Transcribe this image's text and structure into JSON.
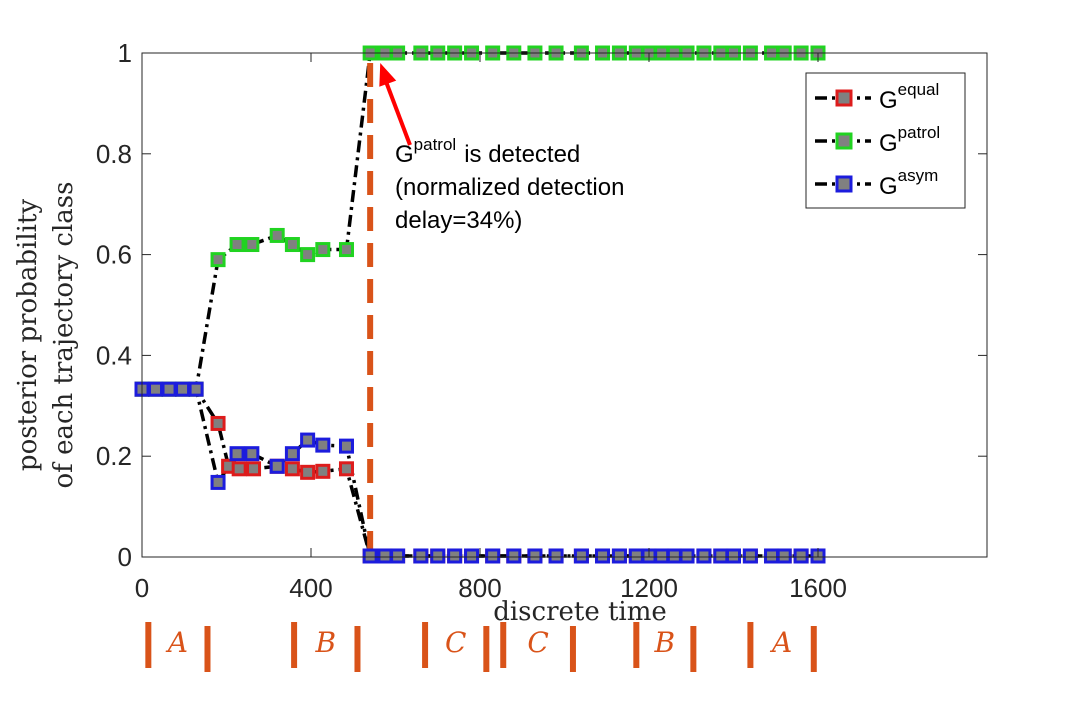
{
  "chart_data": {
    "type": "line",
    "title": "",
    "xlabel": "discrete time",
    "ylabel_lines": [
      "posterior probability",
      "of each trajectory class"
    ],
    "xlim": [
      0,
      2000
    ],
    "ylim": [
      0,
      1
    ],
    "xticks": [
      0,
      400,
      800,
      1200,
      1600
    ],
    "xtick_labels": [
      "0",
      "400",
      "800",
      "1200",
      "1600"
    ],
    "yticks": [
      0,
      0.2,
      0.4,
      0.6,
      0.8,
      1
    ],
    "ytick_labels": [
      "0",
      "0.2",
      "0.4",
      "0.6",
      "0.8",
      "1"
    ],
    "grid": false,
    "legend_position": "top-right",
    "series": [
      {
        "name": "G",
        "superscript": "equal",
        "marker_edge": "#dd1c1c",
        "marker_face": "#808080",
        "line_color": "#000000",
        "x": [
          0,
          32,
          64,
          96,
          128,
          180,
          205,
          230,
          264,
          320,
          356,
          392,
          428,
          484,
          540,
          575,
          605,
          660,
          700,
          740,
          780,
          830,
          880,
          930,
          980,
          1040,
          1090,
          1130,
          1170,
          1200,
          1230,
          1260,
          1290,
          1330,
          1370,
          1400,
          1440,
          1490,
          1520,
          1560,
          1600
        ],
        "y": [
          0.333,
          0.333,
          0.333,
          0.333,
          0.333,
          0.265,
          0.18,
          0.175,
          0.175,
          0.18,
          0.175,
          0.168,
          0.17,
          0.175,
          0.002,
          0.002,
          0.002,
          0.002,
          0.002,
          0.002,
          0.002,
          0.002,
          0.002,
          0.002,
          0.002,
          0.002,
          0.002,
          0.002,
          0.002,
          0.002,
          0.002,
          0.002,
          0.002,
          0.002,
          0.002,
          0.002,
          0.002,
          0.002,
          0.002,
          0.002,
          0.002
        ]
      },
      {
        "name": "G",
        "superscript": "patrol",
        "marker_edge": "#21d321",
        "marker_face": "#808080",
        "line_color": "#000000",
        "x": [
          0,
          32,
          64,
          96,
          128,
          180,
          225,
          260,
          320,
          356,
          392,
          428,
          484,
          540,
          575,
          605,
          660,
          700,
          740,
          780,
          830,
          880,
          930,
          980,
          1040,
          1090,
          1130,
          1170,
          1200,
          1230,
          1260,
          1290,
          1330,
          1370,
          1400,
          1440,
          1490,
          1520,
          1560,
          1600
        ],
        "y": [
          0.333,
          0.333,
          0.333,
          0.333,
          0.333,
          0.59,
          0.62,
          0.62,
          0.638,
          0.62,
          0.6,
          0.61,
          0.61,
          1.0,
          1.0,
          1.0,
          1.0,
          1.0,
          1.0,
          1.0,
          1.0,
          1.0,
          1.0,
          1.0,
          1.0,
          1.0,
          1.0,
          1.0,
          1.0,
          1.0,
          1.0,
          1.0,
          1.0,
          1.0,
          1.0,
          1.0,
          1.0,
          1.0,
          1.0,
          1.0
        ]
      },
      {
        "name": "G",
        "superscript": "asym",
        "marker_edge": "#1c1cdd",
        "marker_face": "#808080",
        "line_color": "#000000",
        "x": [
          0,
          32,
          64,
          96,
          128,
          180,
          225,
          260,
          320,
          356,
          392,
          428,
          484,
          540,
          575,
          605,
          660,
          700,
          740,
          780,
          830,
          880,
          930,
          980,
          1040,
          1090,
          1130,
          1170,
          1200,
          1230,
          1260,
          1290,
          1330,
          1370,
          1400,
          1440,
          1490,
          1520,
          1560,
          1600
        ],
        "y": [
          0.333,
          0.333,
          0.333,
          0.333,
          0.333,
          0.148,
          0.205,
          0.205,
          0.18,
          0.205,
          0.232,
          0.222,
          0.22,
          0.002,
          0.002,
          0.002,
          0.002,
          0.002,
          0.002,
          0.002,
          0.002,
          0.002,
          0.002,
          0.002,
          0.002,
          0.002,
          0.002,
          0.002,
          0.002,
          0.002,
          0.002,
          0.002,
          0.002,
          0.002,
          0.002,
          0.002,
          0.002,
          0.002,
          0.002,
          0.002
        ]
      }
    ],
    "detection_line": {
      "x": 540,
      "color": "#d95319"
    },
    "annotation": {
      "arrow_color": "#ff0000",
      "arrow_target": {
        "x": 545,
        "y": 1.0
      },
      "line1_prefix": "G",
      "line1_sup": "patrol",
      "line1_suffix": "is detected",
      "line2": "(normalized detection",
      "line3": "delay=34%)"
    },
    "segments": {
      "color": "#d95319",
      "items": [
        {
          "label": "A",
          "start": 15,
          "end": 155
        },
        {
          "label": "B",
          "start": 360,
          "end": 510
        },
        {
          "label": "C",
          "start": 670,
          "end": 815
        },
        {
          "label": "C",
          "start": 855,
          "end": 1020
        },
        {
          "label": "B",
          "start": 1170,
          "end": 1305
        },
        {
          "label": "A",
          "start": 1440,
          "end": 1590
        }
      ]
    }
  }
}
